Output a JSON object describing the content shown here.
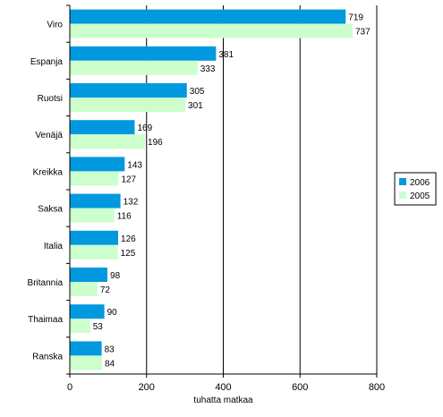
{
  "chart_data": {
    "type": "bar",
    "orientation": "horizontal",
    "categories": [
      "Viro",
      "Espanja",
      "Ruotsi",
      "Venäjä",
      "Kreikka",
      "Saksa",
      "Italia",
      "Britannia",
      "Thaimaa",
      "Ranska"
    ],
    "series": [
      {
        "name": "2006",
        "values": [
          719,
          381,
          305,
          169,
          143,
          132,
          126,
          98,
          90,
          83
        ],
        "color": "#0099e0"
      },
      {
        "name": "2005",
        "values": [
          737,
          333,
          301,
          196,
          127,
          116,
          125,
          72,
          53,
          84
        ],
        "color": "#ccffcc"
      }
    ],
    "xlim": [
      0,
      800
    ],
    "xticks": [
      0,
      200,
      400,
      600,
      800
    ],
    "xlabel": "tuhatta matkaa",
    "grid": "vertical",
    "legend": "right"
  }
}
